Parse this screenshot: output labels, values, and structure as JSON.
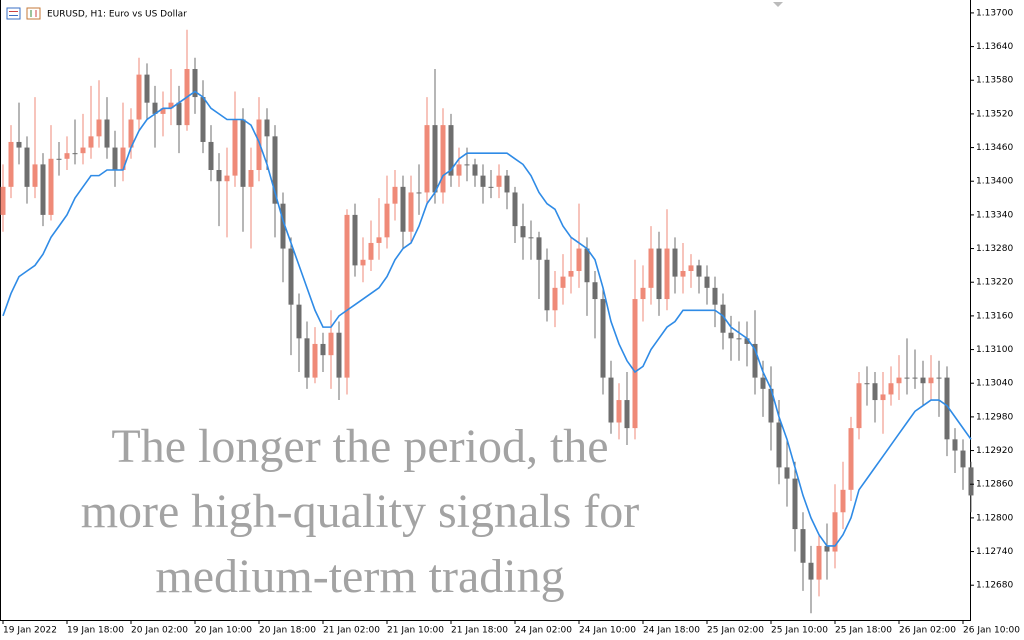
{
  "chart_data": {
    "type": "candlestick",
    "title": "EURUSD, H1: Euro vs US Dollar",
    "annotation": [
      "The longer the period, the",
      "more high-quality signals for",
      "medium-term trading"
    ],
    "categories": [
      "19 Jan 2022",
      null,
      null,
      null,
      null,
      null,
      null,
      null,
      "19 Jan 18:00",
      null,
      null,
      null,
      null,
      null,
      null,
      null,
      "20 Jan 02:00",
      null,
      null,
      null,
      null,
      null,
      null,
      null,
      "20 Jan 10:00",
      null,
      null,
      null,
      null,
      null,
      null,
      null,
      "20 Jan 18:00",
      null,
      null,
      null,
      null,
      null,
      null,
      null,
      "21 Jan 02:00",
      null,
      null,
      null,
      null,
      null,
      null,
      null,
      "21 Jan 10:00",
      null,
      null,
      null,
      null,
      null,
      null,
      null,
      "21 Jan 18:00",
      null,
      null,
      null,
      null,
      null,
      null,
      null,
      "24 Jan 02:00",
      null,
      null,
      null,
      null,
      null,
      null,
      null,
      "24 Jan 10:00",
      null,
      null,
      null,
      null,
      null,
      null,
      null,
      "24 Jan 18:00",
      null,
      null,
      null,
      null,
      null,
      null,
      null,
      "25 Jan 02:00",
      null,
      null,
      null,
      null,
      null,
      null,
      null,
      "25 Jan 10:00",
      null,
      null,
      null,
      null,
      null,
      null,
      null,
      "25 Jan 18:00",
      null,
      null,
      null,
      null,
      null,
      null,
      null,
      "26 Jan 02:00",
      null,
      null,
      null,
      null,
      null,
      null,
      null,
      "26 Jan 10:00",
      null
    ],
    "open": [
      1.1334,
      1.1339,
      1.1347,
      1.1346,
      1.1339,
      1.1343,
      1.1334,
      1.1344,
      1.1344,
      1.1345,
      1.1345,
      1.1346,
      1.1348,
      1.1351,
      1.1346,
      1.1342,
      1.1346,
      1.1351,
      1.1359,
      1.1354,
      1.1352,
      1.1353,
      1.1354,
      1.135,
      1.136,
      1.1355,
      1.1347,
      1.1342,
      1.134,
      1.1341,
      1.1351,
      1.1339,
      1.1342,
      1.1351,
      1.1348,
      1.1336,
      1.1328,
      1.1318,
      1.1312,
      1.1305,
      1.1311,
      1.1309,
      1.1313,
      1.1305,
      1.1334,
      1.1325,
      1.1326,
      1.1329,
      1.133,
      1.1336,
      1.1339,
      1.1331,
      1.1338,
      1.1338,
      1.135,
      1.1338,
      1.135,
      1.1341,
      1.1343,
      1.1343,
      1.1341,
      1.1339,
      1.1339,
      1.1341,
      1.1338,
      1.1332,
      1.133,
      1.133,
      1.1326,
      1.1317,
      1.1321,
      1.1323,
      1.1324,
      1.1328,
      1.1322,
      1.1319,
      1.1305,
      1.1297,
      1.1301,
      1.1296,
      1.1319,
      1.1321,
      1.1328,
      1.1319,
      1.1328,
      1.1323,
      1.1324,
      1.1325,
      1.1323,
      1.1321,
      1.1318,
      1.1313,
      1.1312,
      1.1312,
      1.1311,
      1.1305,
      1.1303,
      1.1297,
      1.1289,
      1.1287,
      1.1278,
      1.1272,
      1.1269,
      1.1275,
      1.1274,
      1.1281,
      1.1285,
      1.1296,
      1.1304,
      1.1304,
      1.1301,
      1.1302,
      1.1304,
      1.1305,
      1.1305,
      1.1305,
      1.1304,
      1.1305,
      1.1305,
      1.1294,
      1.1292,
      1.1289
    ],
    "high": [
      1.1343,
      1.135,
      1.1354,
      1.1348,
      1.1355,
      1.1345,
      1.135,
      1.1347,
      1.1348,
      1.1351,
      1.1352,
      1.1357,
      1.1358,
      1.1355,
      1.1349,
      1.1354,
      1.1353,
      1.1362,
      1.1361,
      1.1357,
      1.1356,
      1.136,
      1.1357,
      1.1367,
      1.1362,
      1.1358,
      1.135,
      1.1345,
      1.1346,
      1.1356,
      1.1353,
      1.1346,
      1.1355,
      1.1353,
      1.135,
      1.1338,
      1.133,
      1.132,
      1.1315,
      1.1314,
      1.1313,
      1.1317,
      1.1315,
      1.1335,
      1.1336,
      1.133,
      1.1333,
      1.1337,
      1.1341,
      1.1342,
      1.1341,
      1.1341,
      1.1343,
      1.1355,
      1.136,
      1.1353,
      1.1352,
      1.1346,
      1.1346,
      1.1344,
      1.1343,
      1.1342,
      1.1343,
      1.1342,
      1.1339,
      1.1336,
      1.1333,
      1.1331,
      1.1328,
      1.1324,
      1.1327,
      1.133,
      1.1336,
      1.133,
      1.1324,
      1.1321,
      1.1308,
      1.1304,
      1.1306,
      1.1326,
      1.1325,
      1.1332,
      1.1331,
      1.1335,
      1.133,
      1.1329,
      1.1327,
      1.1326,
      1.1325,
      1.1323,
      1.132,
      1.1316,
      1.1315,
      1.1315,
      1.1317,
      1.1308,
      1.1307,
      1.1301,
      1.1294,
      1.129,
      1.1281,
      1.1275,
      1.1277,
      1.1279,
      1.1286,
      1.129,
      1.1298,
      1.1306,
      1.1307,
      1.1306,
      1.1306,
      1.1307,
      1.1309,
      1.1312,
      1.131,
      1.1308,
      1.1309,
      1.1308,
      1.1307,
      1.1296,
      1.1294,
      1.129
    ],
    "low": [
      1.1331,
      1.1337,
      1.1343,
      1.1336,
      1.1337,
      1.1332,
      1.1333,
      1.1341,
      1.1342,
      1.1343,
      1.1343,
      1.1344,
      1.1346,
      1.1344,
      1.1339,
      1.134,
      1.1344,
      1.1349,
      1.1351,
      1.1346,
      1.1348,
      1.135,
      1.1345,
      1.1349,
      1.1352,
      1.1345,
      1.134,
      1.1332,
      1.133,
      1.1339,
      1.1331,
      1.1328,
      1.134,
      1.1342,
      1.133,
      1.1322,
      1.1309,
      1.1306,
      1.1303,
      1.1304,
      1.1306,
      1.1303,
      1.1301,
      1.1302,
      1.1323,
      1.1322,
      1.1324,
      1.1326,
      1.1328,
      1.1333,
      1.1328,
      1.1329,
      1.1334,
      1.1336,
      1.1336,
      1.1336,
      1.1339,
      1.1339,
      1.134,
      1.1339,
      1.1336,
      1.1337,
      1.1337,
      1.1335,
      1.1329,
      1.1326,
      1.1326,
      1.1319,
      1.1315,
      1.1314,
      1.1318,
      1.132,
      1.1321,
      1.1316,
      1.1312,
      1.1302,
      1.1295,
      1.1294,
      1.1293,
      1.1294,
      1.1315,
      1.1318,
      1.1316,
      1.1317,
      1.132,
      1.132,
      1.1321,
      1.132,
      1.1318,
      1.1314,
      1.131,
      1.1308,
      1.1308,
      1.1307,
      1.1302,
      1.1298,
      1.1292,
      1.1286,
      1.1282,
      1.1274,
      1.1267,
      1.1263,
      1.1266,
      1.1269,
      1.1271,
      1.1278,
      1.1283,
      1.1294,
      1.13,
      1.1297,
      1.1295,
      1.13,
      1.1301,
      1.1302,
      1.1303,
      1.13,
      1.1301,
      1.1298,
      1.1291,
      1.1288,
      1.1285,
      1.1281
    ],
    "close": [
      1.1339,
      1.1347,
      1.1346,
      1.1339,
      1.1343,
      1.1334,
      1.1344,
      1.1344,
      1.1345,
      1.1345,
      1.1346,
      1.1348,
      1.1351,
      1.1346,
      1.1342,
      1.1346,
      1.1351,
      1.1359,
      1.1354,
      1.1352,
      1.1353,
      1.1354,
      1.135,
      1.136,
      1.1355,
      1.1347,
      1.1342,
      1.134,
      1.1341,
      1.1351,
      1.1339,
      1.1342,
      1.1351,
      1.1348,
      1.1336,
      1.1328,
      1.1318,
      1.1312,
      1.1305,
      1.1311,
      1.1309,
      1.1313,
      1.1305,
      1.1334,
      1.1325,
      1.1326,
      1.1329,
      1.133,
      1.1336,
      1.1339,
      1.1331,
      1.1338,
      1.1338,
      1.135,
      1.1338,
      1.135,
      1.1341,
      1.1343,
      1.1343,
      1.1341,
      1.1339,
      1.1339,
      1.1341,
      1.1338,
      1.1332,
      1.133,
      1.133,
      1.1326,
      1.1317,
      1.1321,
      1.1323,
      1.1324,
      1.1328,
      1.1322,
      1.1319,
      1.1305,
      1.1297,
      1.1301,
      1.1296,
      1.1319,
      1.1321,
      1.1328,
      1.1319,
      1.1328,
      1.1323,
      1.1324,
      1.1325,
      1.1323,
      1.1321,
      1.1318,
      1.1313,
      1.1312,
      1.1312,
      1.1311,
      1.1305,
      1.1303,
      1.1297,
      1.1289,
      1.1287,
      1.1278,
      1.1272,
      1.1269,
      1.1275,
      1.1274,
      1.1281,
      1.1285,
      1.1296,
      1.1304,
      1.1304,
      1.1301,
      1.1302,
      1.1304,
      1.1305,
      1.1305,
      1.1305,
      1.1304,
      1.1305,
      1.1305,
      1.1294,
      1.1292,
      1.1289,
      1.1284
    ],
    "up_color": "#ef8a78",
    "down_color": "#6e6e6e",
    "moving_average": {
      "color": "#2f8be6",
      "values": [
        1.1316,
        1.132,
        1.1323,
        1.1324,
        1.1325,
        1.1327,
        1.133,
        1.1332,
        1.1334,
        1.1337,
        1.1339,
        1.1341,
        1.1341,
        1.1342,
        1.1342,
        1.1342,
        1.1346,
        1.1349,
        1.1351,
        1.1352,
        1.1353,
        1.1353,
        1.1354,
        1.1355,
        1.1356,
        1.1355,
        1.1353,
        1.1352,
        1.1351,
        1.1351,
        1.1351,
        1.135,
        1.1347,
        1.1343,
        1.1338,
        1.1333,
        1.1329,
        1.1325,
        1.1321,
        1.1317,
        1.1314,
        1.1314,
        1.1316,
        1.1317,
        1.1318,
        1.1319,
        1.132,
        1.1321,
        1.1323,
        1.1326,
        1.1328,
        1.1329,
        1.1332,
        1.1336,
        1.1338,
        1.1341,
        1.1342,
        1.1344,
        1.1345,
        1.1345,
        1.1345,
        1.1345,
        1.1345,
        1.1345,
        1.1344,
        1.1343,
        1.1341,
        1.1338,
        1.1336,
        1.1335,
        1.1332,
        1.133,
        1.1329,
        1.1328,
        1.1326,
        1.1321,
        1.1315,
        1.1311,
        1.1308,
        1.1306,
        1.1307,
        1.131,
        1.1312,
        1.1314,
        1.1315,
        1.1317,
        1.1317,
        1.1317,
        1.1317,
        1.1317,
        1.1316,
        1.1314,
        1.1313,
        1.1312,
        1.131,
        1.1306,
        1.1303,
        1.1298,
        1.1294,
        1.1289,
        1.1284,
        1.128,
        1.1277,
        1.1275,
        1.1275,
        1.1277,
        1.128,
        1.1285,
        1.1287,
        1.1289,
        1.1291,
        1.1293,
        1.1295,
        1.1297,
        1.1299,
        1.13,
        1.1301,
        1.1301,
        1.13,
        1.1298,
        1.1296,
        1.1294
      ]
    },
    "ylim": [
      1.12618,
      1.13723
    ],
    "yticks": [
      {
        "value": 1.1268,
        "label": "1.12680"
      },
      {
        "value": 1.1274,
        "label": "1.12740"
      },
      {
        "value": 1.128,
        "label": "1.12800"
      },
      {
        "value": 1.1286,
        "label": "1.12860"
      },
      {
        "value": 1.1292,
        "label": "1.12920"
      },
      {
        "value": 1.1298,
        "label": "1.12980"
      },
      {
        "value": 1.1304,
        "label": "1.13040"
      },
      {
        "value": 1.131,
        "label": "1.13100"
      },
      {
        "value": 1.1316,
        "label": "1.13160"
      },
      {
        "value": 1.1322,
        "label": "1.13220"
      },
      {
        "value": 1.1328,
        "label": "1.13280"
      },
      {
        "value": 1.1334,
        "label": "1.13340"
      },
      {
        "value": 1.134,
        "label": "1.13400"
      },
      {
        "value": 1.1346,
        "label": "1.13460"
      },
      {
        "value": 1.1352,
        "label": "1.13520"
      },
      {
        "value": 1.1358,
        "label": "1.13580"
      },
      {
        "value": 1.1364,
        "label": "1.13640"
      },
      {
        "value": 1.137,
        "label": "1.13700"
      }
    ]
  }
}
